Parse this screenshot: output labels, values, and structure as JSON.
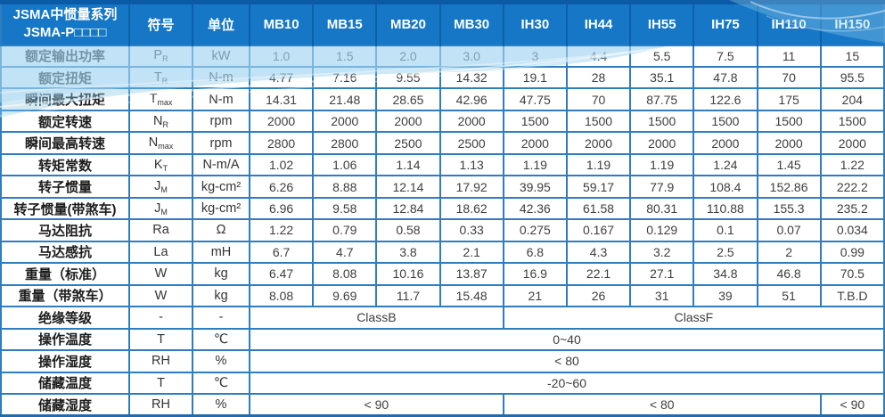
{
  "colors": {
    "header_blue": "#1577c5",
    "header_separator": "#0d5fad",
    "grid_blue": "#2e7dc0",
    "top_bar": "#0b5aa5",
    "bottom_bar": "#1e6bb0",
    "value_text": "#3e3e3e",
    "label_text": "#1c1c1c",
    "wave_tint": "#a9d6ef"
  },
  "table": {
    "title_line1": "JSMA中惯量系列",
    "title_line2": "JSMA-P□□□□",
    "header": {
      "symbol_label": "符号",
      "unit_label": "单位",
      "models": [
        "MB10",
        "MB15",
        "MB20",
        "MB30",
        "IH30",
        "IH44",
        "IH55",
        "IH75",
        "IH110",
        "IH150"
      ]
    },
    "rows": [
      {
        "label": "额定输出功率",
        "sym": "P",
        "sub": "R",
        "unit": "kW",
        "cells": [
          "1.0",
          "1.5",
          "2.0",
          "3.0",
          "3",
          "4.4",
          "5.5",
          "7.5",
          "11",
          "15"
        ]
      },
      {
        "label": "额定扭矩",
        "sym": "T",
        "sub": "R",
        "unit": "N-m",
        "cells": [
          "4.77",
          "7.16",
          "9.55",
          "14.32",
          "19.1",
          "28",
          "35.1",
          "47.8",
          "70",
          "95.5"
        ]
      },
      {
        "label": "瞬间最大扭矩",
        "sym": "T",
        "sub": "max",
        "unit": "N-m",
        "cells": [
          "14.31",
          "21.48",
          "28.65",
          "42.96",
          "47.75",
          "70",
          "87.75",
          "122.6",
          "175",
          "204"
        ]
      },
      {
        "label": "额定转速",
        "sym": "N",
        "sub": "R",
        "unit": "rpm",
        "cells": [
          "2000",
          "2000",
          "2000",
          "2000",
          "1500",
          "1500",
          "1500",
          "1500",
          "1500",
          "1500"
        ]
      },
      {
        "label": "瞬间最高转速",
        "sym": "N",
        "sub": "max",
        "unit": "rpm",
        "cells": [
          "2800",
          "2800",
          "2500",
          "2500",
          "2000",
          "2000",
          "2000",
          "2000",
          "2000",
          "2000"
        ]
      },
      {
        "label": "转矩常数",
        "sym": "K",
        "sub": "T",
        "unit": "N-m/A",
        "cells": [
          "1.02",
          "1.06",
          "1.14",
          "1.13",
          "1.19",
          "1.19",
          "1.19",
          "1.24",
          "1.45",
          "1.22"
        ]
      },
      {
        "label": "转子惯量",
        "sym": "J",
        "sub": "M",
        "unit": "kg-cm²",
        "cells": [
          "6.26",
          "8.88",
          "12.14",
          "17.92",
          "39.95",
          "59.17",
          "77.9",
          "108.4",
          "152.86",
          "222.2"
        ]
      },
      {
        "label": "转子惯量(带煞车)",
        "sym": "J",
        "sub": "M",
        "unit": "kg-cm²",
        "cells": [
          "6.96",
          "9.58",
          "12.84",
          "18.62",
          "42.36",
          "61.58",
          "80.31",
          "110.88",
          "155.3",
          "235.2"
        ]
      },
      {
        "label": "马达阻抗",
        "sym": "Ra",
        "sub": "",
        "unit": "Ω",
        "cells": [
          "1.22",
          "0.79",
          "0.58",
          "0.33",
          "0.275",
          "0.167",
          "0.129",
          "0.1",
          "0.07",
          "0.034"
        ]
      },
      {
        "label": "马达感抗",
        "sym": "La",
        "sub": "",
        "unit": "mH",
        "cells": [
          "6.7",
          "4.7",
          "3.8",
          "2.1",
          "6.8",
          "4.3",
          "3.2",
          "2.5",
          "2",
          "0.99"
        ]
      },
      {
        "label": "重量（标准）",
        "sym": "W",
        "sub": "",
        "unit": "kg",
        "cells": [
          "6.47",
          "8.08",
          "10.16",
          "13.87",
          "16.9",
          "22.1",
          "27.1",
          "34.8",
          "46.8",
          "70.5"
        ]
      },
      {
        "label": "重量（带煞车）",
        "sym": "W",
        "sub": "",
        "unit": "kg",
        "cells": [
          "8.08",
          "9.69",
          "11.7",
          "15.48",
          "21",
          "26",
          "31",
          "39",
          "51",
          "T.B.D"
        ]
      },
      {
        "label": "绝缘等级",
        "sym": "-",
        "sub": "",
        "unit": "-",
        "cells": [
          {
            "t": "ClassB",
            "span": 4
          },
          {
            "t": "ClassF",
            "span": 6
          }
        ]
      },
      {
        "label": "操作温度",
        "sym": "T",
        "sub": "",
        "unit": "℃",
        "cells": [
          {
            "t": "0~40",
            "span": 10
          }
        ]
      },
      {
        "label": "操作湿度",
        "sym": "RH",
        "sub": "",
        "unit": "%",
        "cells": [
          {
            "t": "< 80",
            "span": 10
          }
        ]
      },
      {
        "label": "储藏温度",
        "sym": "T",
        "sub": "",
        "unit": "℃",
        "cells": [
          {
            "t": "-20~60",
            "span": 10
          }
        ]
      },
      {
        "label": "储藏湿度",
        "sym": "RH",
        "sub": "",
        "unit": "%",
        "cells": [
          {
            "t": "< 90",
            "span": 4
          },
          {
            "t": "< 80",
            "span": 5
          },
          {
            "t": "< 90",
            "span": 1
          }
        ]
      }
    ]
  }
}
